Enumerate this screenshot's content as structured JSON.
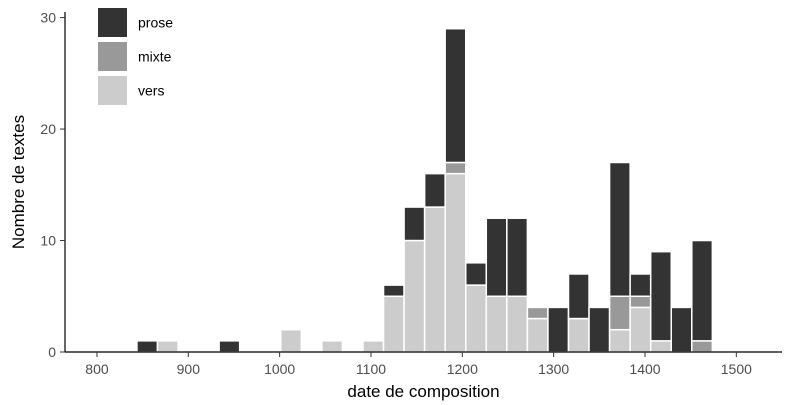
{
  "chart_data": {
    "type": "bar",
    "stacked": true,
    "title": "",
    "xlabel": "date de composition",
    "ylabel": "Nombre de textes",
    "xlim": [
      765,
      1550
    ],
    "ylim": [
      0,
      30.5
    ],
    "bin_width": 22.5,
    "x_ticks": [
      800,
      900,
      1000,
      1100,
      1200,
      1300,
      1400,
      1500
    ],
    "y_ticks": [
      0,
      10,
      20,
      30
    ],
    "grid": false,
    "legend_position": "top-left",
    "stack_order": [
      "vers",
      "mixte",
      "prose"
    ],
    "series": [
      {
        "name": "prose",
        "color": "#333333"
      },
      {
        "name": "mixte",
        "color": "#999999"
      },
      {
        "name": "vers",
        "color": "#cccccc"
      }
    ],
    "bins": [
      {
        "x": 855,
        "prose": 1,
        "mixte": 0,
        "vers": 0
      },
      {
        "x": 877.5,
        "prose": 0,
        "mixte": 0,
        "vers": 1
      },
      {
        "x": 945,
        "prose": 1,
        "mixte": 0,
        "vers": 0
      },
      {
        "x": 1012.5,
        "prose": 0,
        "mixte": 0,
        "vers": 2
      },
      {
        "x": 1057.5,
        "prose": 0,
        "mixte": 0,
        "vers": 1
      },
      {
        "x": 1102.5,
        "prose": 0,
        "mixte": 0,
        "vers": 1
      },
      {
        "x": 1125,
        "prose": 1,
        "mixte": 0,
        "vers": 5
      },
      {
        "x": 1147.5,
        "prose": 3,
        "mixte": 0,
        "vers": 10
      },
      {
        "x": 1170,
        "prose": 3,
        "mixte": 0,
        "vers": 13
      },
      {
        "x": 1192.5,
        "prose": 12,
        "mixte": 1,
        "vers": 16
      },
      {
        "x": 1215,
        "prose": 2,
        "mixte": 0,
        "vers": 6
      },
      {
        "x": 1237.5,
        "prose": 7,
        "mixte": 0,
        "vers": 5
      },
      {
        "x": 1260,
        "prose": 7,
        "mixte": 0,
        "vers": 5
      },
      {
        "x": 1282.5,
        "prose": 0,
        "mixte": 1,
        "vers": 3
      },
      {
        "x": 1305,
        "prose": 4,
        "mixte": 0,
        "vers": 0
      },
      {
        "x": 1327.5,
        "prose": 4,
        "mixte": 0,
        "vers": 3
      },
      {
        "x": 1350,
        "prose": 4,
        "mixte": 0,
        "vers": 0
      },
      {
        "x": 1372.5,
        "prose": 12,
        "mixte": 3,
        "vers": 2
      },
      {
        "x": 1395,
        "prose": 2,
        "mixte": 1,
        "vers": 4
      },
      {
        "x": 1417.5,
        "prose": 8,
        "mixte": 0,
        "vers": 1
      },
      {
        "x": 1440,
        "prose": 4,
        "mixte": 0,
        "vers": 0
      },
      {
        "x": 1462.5,
        "prose": 9,
        "mixte": 1,
        "vers": 0
      }
    ]
  }
}
